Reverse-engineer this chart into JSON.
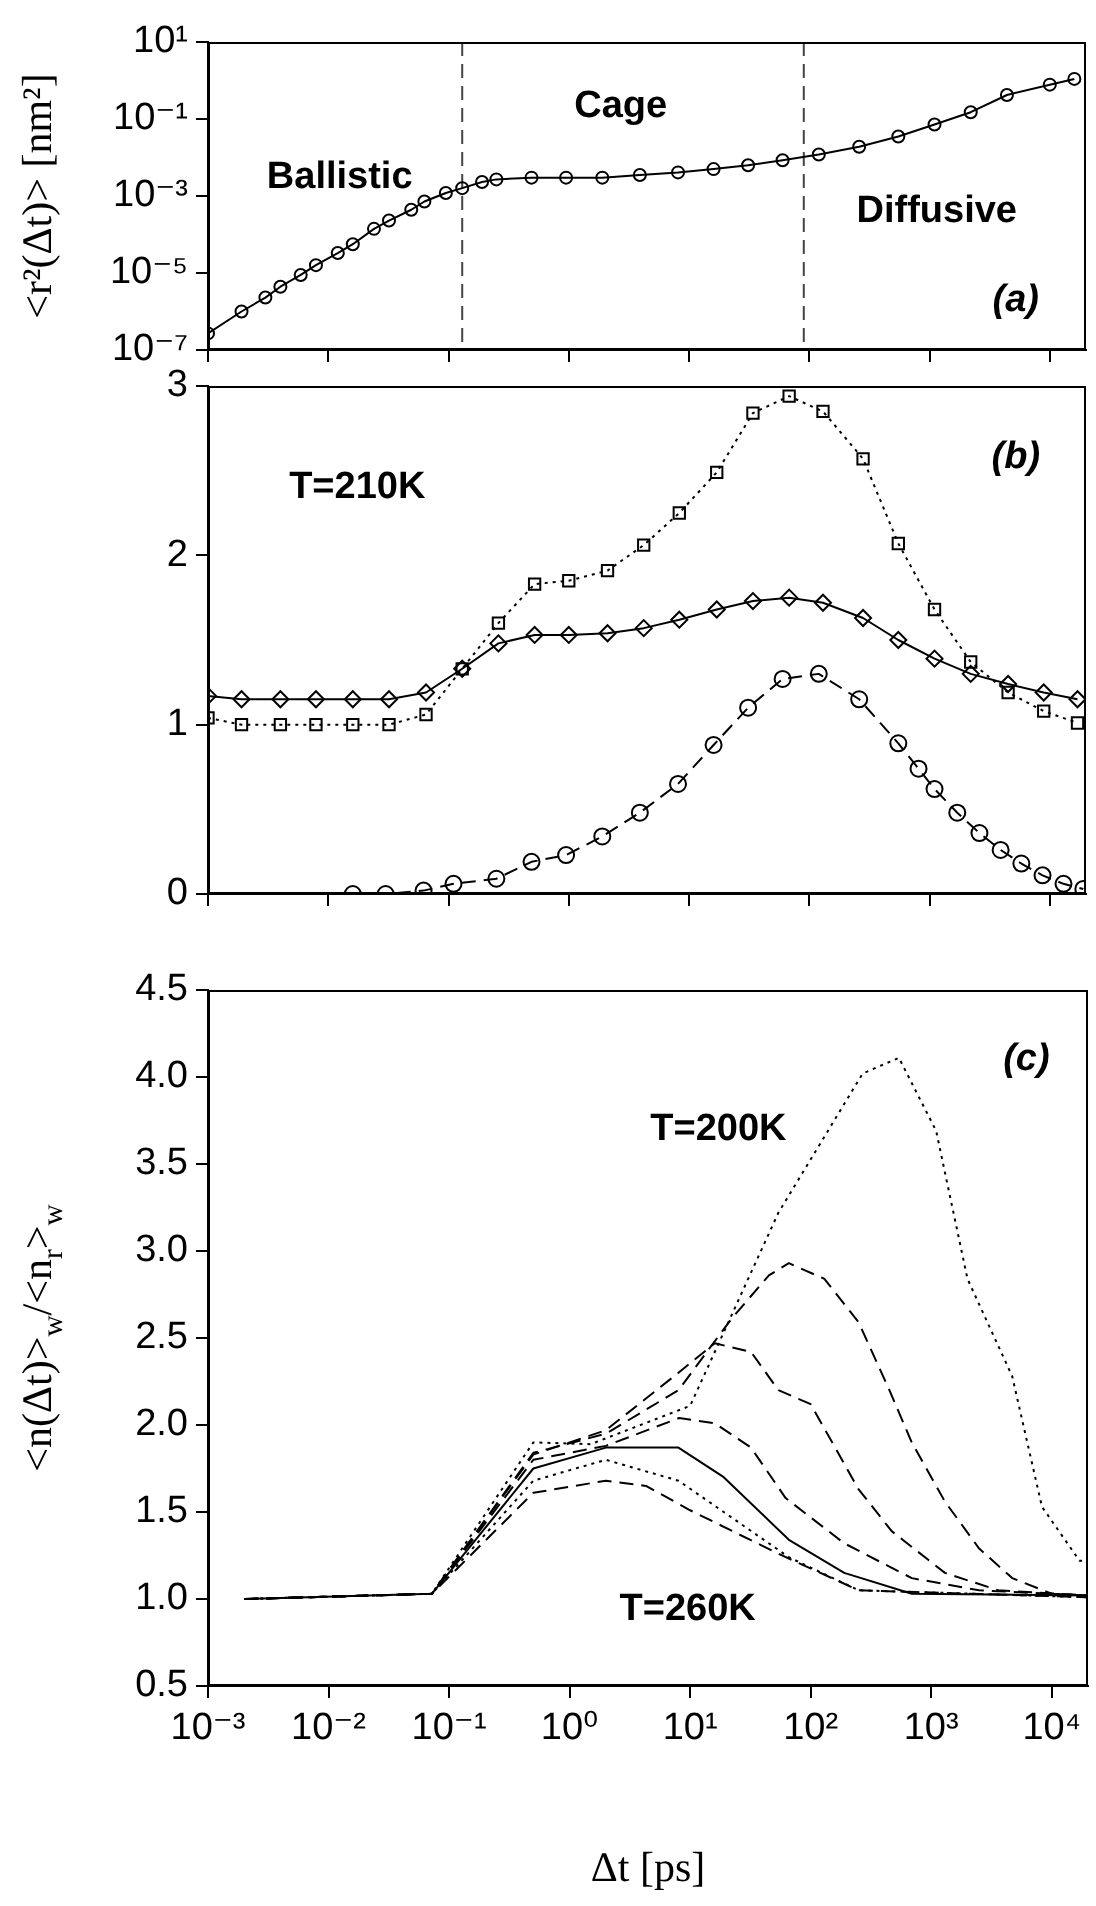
{
  "chart_data": [
    {
      "type": "line",
      "ylabel": "<r²(Δt)> [nm²]",
      "log": "xy",
      "marker": "circle",
      "line_style": "solid",
      "tick_labels": "y",
      "xlim": [
        0.001,
        20000
      ],
      "xticks": [
        {
          "value": 0.001,
          "label": null
        },
        {
          "value": 0.01,
          "label": null
        },
        {
          "value": 0.1,
          "label": null
        },
        {
          "value": 1,
          "label": null
        },
        {
          "value": 10,
          "label": null
        },
        {
          "value": 100,
          "label": null
        },
        {
          "value": 1000,
          "label": null
        },
        {
          "value": 10000,
          "label": null
        }
      ],
      "ylim": [
        1e-07,
        10
      ],
      "yticks": [
        {
          "value": 1e-07,
          "label": "10⁻⁷"
        },
        {
          "value": 1e-05,
          "label": "10⁻⁵"
        },
        {
          "value": 0.001,
          "label": "10⁻³"
        },
        {
          "value": 0.1,
          "label": "10⁻¹"
        },
        {
          "value": 10,
          "label": "10¹"
        }
      ],
      "ref_lines": [
        {
          "axis": "x",
          "value": 0.13,
          "color": "#444444",
          "line_style": "dashed"
        },
        {
          "axis": "x",
          "value": 90,
          "color": "#444444",
          "line_style": "dashed"
        }
      ],
      "annotations": [
        "Ballistic",
        "Cage",
        "Diffusive",
        "(a)"
      ],
      "series": [
        {
          "color": "#000000",
          "x": [
            0.001,
            0.0019,
            0.003,
            0.004,
            0.0059,
            0.0079,
            0.012,
            0.016,
            0.024,
            0.032,
            0.049,
            0.063,
            0.095,
            0.13,
            0.19,
            0.25,
            0.49,
            0.95,
            1.9,
            3.9,
            8.1,
            16,
            31,
            60,
            120,
            260,
            550,
            1100,
            2200,
            4400,
            10000,
            16000
          ],
          "values": [
            2.7e-07,
            1e-06,
            2.3e-06,
            4.4e-06,
            8.9e-06,
            1.6e-05,
            3.3e-05,
            5.6e-05,
            0.00014,
            0.00023,
            0.00044,
            0.00072,
            0.0012,
            0.0016,
            0.0023,
            0.0027,
            0.003,
            0.003,
            0.003,
            0.0035,
            0.0041,
            0.005,
            0.0063,
            0.0085,
            0.012,
            0.019,
            0.035,
            0.072,
            0.15,
            0.42,
            0.78,
            1.1
          ]
        }
      ]
    },
    {
      "type": "line",
      "log": "x",
      "tick_labels": "y",
      "xlim": [
        0.001,
        20000
      ],
      "xticks": [
        {
          "value": 0.001,
          "label": null
        },
        {
          "value": 0.01,
          "label": null
        },
        {
          "value": 0.1,
          "label": null
        },
        {
          "value": 1,
          "label": null
        },
        {
          "value": 10,
          "label": null
        },
        {
          "value": 100,
          "label": null
        },
        {
          "value": 1000,
          "label": null
        },
        {
          "value": 10000,
          "label": null
        }
      ],
      "ylim": [
        0,
        3
      ],
      "yticks": [
        0,
        1,
        2,
        3
      ],
      "annotations": [
        "T=210K",
        "(b)"
      ],
      "series": [
        {
          "color": "#000000",
          "marker": "square",
          "line_style": "dotted",
          "x": [
            0.001,
            0.0019,
            0.004,
            0.0079,
            0.016,
            0.032,
            0.065,
            0.13,
            0.26,
            0.52,
            1.0,
            2.1,
            4.2,
            8.3,
            17,
            34,
            68,
            130,
            280,
            550,
            1100,
            2200,
            4500,
            8900,
            17000
          ],
          "values": [
            1.04,
            1.0,
            1.0,
            1.0,
            1.0,
            1.0,
            1.06,
            1.33,
            1.6,
            1.83,
            1.85,
            1.91,
            2.06,
            2.25,
            2.49,
            2.84,
            2.94,
            2.85,
            2.57,
            2.07,
            1.68,
            1.37,
            1.19,
            1.08,
            1.01
          ]
        },
        {
          "color": "#000000",
          "marker": "diamond",
          "line_style": "solid",
          "x": [
            0.001,
            0.0019,
            0.004,
            0.0079,
            0.016,
            0.032,
            0.065,
            0.13,
            0.26,
            0.52,
            1.0,
            2.1,
            4.2,
            8.3,
            17,
            34,
            68,
            130,
            280,
            550,
            1100,
            2200,
            4500,
            8900,
            17000
          ],
          "values": [
            1.17,
            1.15,
            1.15,
            1.15,
            1.15,
            1.15,
            1.19,
            1.33,
            1.48,
            1.53,
            1.53,
            1.54,
            1.57,
            1.62,
            1.68,
            1.73,
            1.75,
            1.72,
            1.63,
            1.5,
            1.39,
            1.3,
            1.24,
            1.19,
            1.15
          ]
        },
        {
          "color": "#000000",
          "marker": "circle",
          "line_style": "dashed",
          "x": [
            0.016,
            0.03,
            0.062,
            0.11,
            0.25,
            0.49,
            0.95,
            1.9,
            3.9,
            8.1,
            16,
            31,
            60,
            120,
            260,
            550,
            810,
            1100,
            1700,
            2600,
            3900,
            5800,
            8700,
            13000,
            19000
          ],
          "values": [
            0,
            0,
            0.02,
            0.06,
            0.09,
            0.19,
            0.23,
            0.34,
            0.48,
            0.65,
            0.88,
            1.1,
            1.27,
            1.3,
            1.15,
            0.89,
            0.74,
            0.62,
            0.48,
            0.36,
            0.26,
            0.18,
            0.11,
            0.06,
            0.03
          ]
        }
      ]
    },
    {
      "type": "line",
      "xlabel": "Δt [ps]",
      "ylabel": "<n(Δt)>$_{w}$/<n$_{r}$>$_{w}$",
      "log": "x",
      "marker": "none",
      "xlim": [
        0.001,
        20000
      ],
      "xticks": [
        {
          "value": 0.001,
          "label": "10⁻³"
        },
        {
          "value": 0.01,
          "label": "10⁻²"
        },
        {
          "value": 0.1,
          "label": "10⁻¹"
        },
        {
          "value": 1,
          "label": "10⁰"
        },
        {
          "value": 10,
          "label": "10¹"
        },
        {
          "value": 100,
          "label": "10²"
        },
        {
          "value": 1000,
          "label": "10³"
        },
        {
          "value": 10000,
          "label": "10⁴"
        }
      ],
      "ylim": [
        0.5,
        4.5
      ],
      "yticks": [
        0.5,
        {
          "value": 1,
          "label": "1.0"
        },
        1.5,
        {
          "value": 2,
          "label": "2.0"
        },
        2.5,
        {
          "value": 3,
          "label": "3.0"
        },
        3.5,
        {
          "value": 4,
          "label": "4.0"
        },
        4.5
      ],
      "annotations": [
        "T=200K",
        "T=260K",
        "(c)"
      ],
      "series": [
        {
          "color": "#000000",
          "line_style": "dotted",
          "x": [
            0.002,
            0.072,
            0.5,
            1.5,
            10,
            54,
            270,
            540,
            1100,
            2000,
            4700,
            8300,
            17000,
            20000
          ],
          "values": [
            1.0,
            1.03,
            1.9,
            1.89,
            2.11,
            3.22,
            4.02,
            4.11,
            3.69,
            2.84,
            2.28,
            1.53,
            1.22,
            1.22
          ]
        },
        {
          "color": "#000000",
          "line_style": "dashed",
          "x": [
            0.002,
            0.072,
            0.5,
            2,
            8,
            22,
            45,
            66,
            130,
            250,
            450,
            690,
            1300,
            2500,
            4700,
            10000,
            20000
          ],
          "values": [
            1.0,
            1.03,
            1.84,
            1.95,
            2.2,
            2.61,
            2.86,
            2.93,
            2.84,
            2.59,
            2.2,
            1.9,
            1.56,
            1.29,
            1.12,
            1.03,
            1.02
          ]
        },
        {
          "color": "#000000",
          "line_style": "dashed",
          "x": [
            0.002,
            0.072,
            0.5,
            2,
            8,
            16,
            32,
            54,
            100,
            250,
            470,
            1300,
            3600,
            20000
          ],
          "values": [
            1.0,
            1.03,
            1.83,
            1.97,
            2.3,
            2.47,
            2.42,
            2.2,
            2.12,
            1.63,
            1.39,
            1.15,
            1.05,
            1.02
          ]
        },
        {
          "color": "#000000",
          "line_style": "dashed",
          "x": [
            0.002,
            0.072,
            0.5,
            2,
            8.1,
            16,
            32,
            62,
            190,
            690,
            2500,
            20000
          ],
          "values": [
            1.0,
            1.03,
            1.8,
            1.88,
            2.04,
            2.01,
            1.87,
            1.58,
            1.32,
            1.12,
            1.05,
            1.02
          ]
        },
        {
          "color": "#000000",
          "line_style": "solid",
          "x": [
            0.002,
            0.072,
            0.5,
            2,
            8,
            19,
            66,
            190,
            690,
            20000
          ],
          "values": [
            1.0,
            1.03,
            1.75,
            1.87,
            1.87,
            1.7,
            1.34,
            1.15,
            1.03,
            1.02
          ]
        },
        {
          "color": "#000000",
          "line_style": "dotted",
          "x": [
            0.002,
            0.072,
            0.5,
            2,
            8,
            19,
            66,
            250,
            20000
          ],
          "values": [
            1.0,
            1.03,
            1.68,
            1.8,
            1.68,
            1.5,
            1.24,
            1.05,
            1.01
          ]
        },
        {
          "color": "#000000",
          "line_style": "dashed",
          "x": [
            0.002,
            0.072,
            0.5,
            2,
            4.3,
            10,
            54,
            250,
            20000
          ],
          "values": [
            1.0,
            1.03,
            1.61,
            1.68,
            1.65,
            1.51,
            1.26,
            1.05,
            1.01
          ]
        }
      ]
    }
  ]
}
